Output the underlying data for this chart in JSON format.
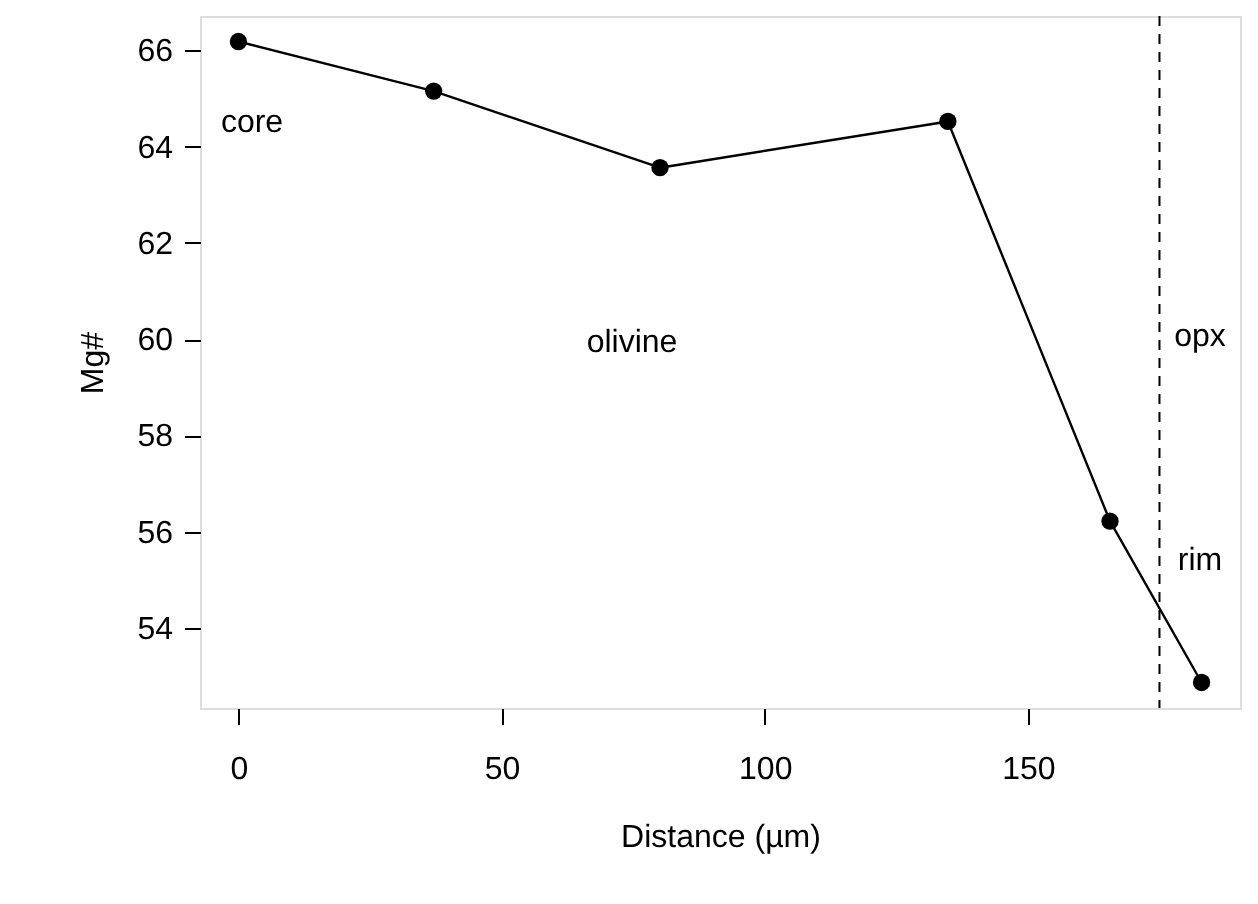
{
  "chart_data": {
    "type": "line",
    "xlabel": "Distance (µm)",
    "ylabel": "Mg#",
    "x": [
      0,
      37.1,
      80.1,
      134.8,
      165.6,
      183
    ],
    "series": [
      {
        "color": "#000000",
        "values": [
          66.18,
          65.15,
          63.56,
          64.52,
          56.22,
          52.87
        ]
      }
    ],
    "xlim": [
      -7.3,
      190.3
    ],
    "ylim": [
      52.34,
      66.71
    ],
    "xticks": [
      0,
      50,
      100,
      150
    ],
    "yticks": [
      54,
      56,
      58,
      60,
      62,
      64,
      66
    ],
    "marker": "circle",
    "line_style": "solid",
    "grid": false,
    "ref_lines": [
      {
        "axis": "x",
        "value": 175,
        "line_style": "dashed",
        "color": "#000000"
      }
    ],
    "annotations": [
      "core",
      "olivine",
      "opx",
      "rim"
    ]
  }
}
